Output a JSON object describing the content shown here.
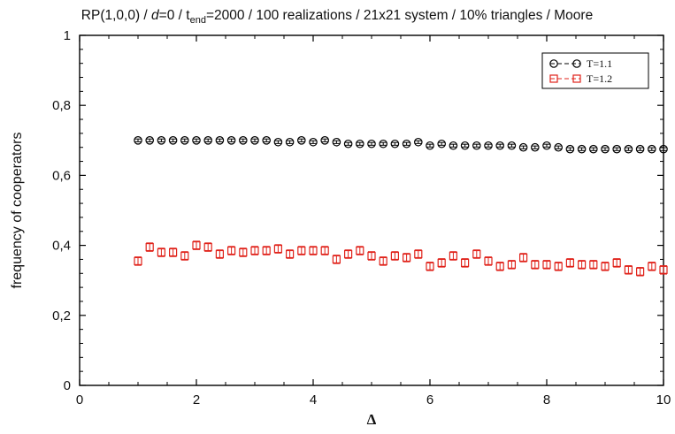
{
  "chart_data": {
    "type": "scatter",
    "title": {
      "prefix": "RP(1,0,0) / ",
      "d_symbol": "d",
      "after_d": "=0 / t",
      "sub": "end",
      "suffix": "=2000 / 100 realizations / 21x21 system / 10% triangles / Moore"
    },
    "xlabel": "Δ",
    "ylabel": "frequency of cooperators",
    "xlim": [
      0,
      10
    ],
    "ylim": [
      0,
      1
    ],
    "xticks": [
      0,
      2,
      4,
      6,
      8,
      10
    ],
    "xtick_labels": [
      "0",
      "2",
      "4",
      "6",
      "8",
      "10"
    ],
    "yticks": [
      0,
      0.2,
      0.4,
      0.6,
      0.8,
      1
    ],
    "ytick_labels": [
      "0",
      "0,2",
      "0,4",
      "0,6",
      "0,8",
      "1"
    ],
    "grid": false,
    "legend_position": "top-right",
    "x": [
      1.0,
      1.2,
      1.4,
      1.6,
      1.8,
      2.0,
      2.2,
      2.4,
      2.6,
      2.8,
      3.0,
      3.2,
      3.4,
      3.6,
      3.8,
      4.0,
      4.2,
      4.4,
      4.6,
      4.8,
      5.0,
      5.2,
      5.4,
      5.6,
      5.8,
      6.0,
      6.2,
      6.4,
      6.6,
      6.8,
      7.0,
      7.2,
      7.4,
      7.6,
      7.8,
      8.0,
      8.2,
      8.4,
      8.6,
      8.8,
      9.0,
      9.2,
      9.4,
      9.6,
      9.8,
      10.0
    ],
    "series": [
      {
        "name": "T=1.1",
        "color": "#000000",
        "marker": "circle",
        "values": [
          0.7,
          0.7,
          0.7,
          0.7,
          0.7,
          0.7,
          0.7,
          0.7,
          0.7,
          0.7,
          0.7,
          0.7,
          0.695,
          0.695,
          0.7,
          0.695,
          0.7,
          0.695,
          0.69,
          0.69,
          0.69,
          0.69,
          0.69,
          0.69,
          0.695,
          0.685,
          0.69,
          0.685,
          0.685,
          0.685,
          0.685,
          0.685,
          0.685,
          0.68,
          0.68,
          0.685,
          0.68,
          0.675,
          0.675,
          0.675,
          0.675,
          0.675,
          0.675,
          0.675,
          0.675,
          0.675
        ],
        "errors": [
          0.004,
          0.004,
          0.004,
          0.004,
          0.004,
          0.004,
          0.004,
          0.004,
          0.004,
          0.004,
          0.004,
          0.004,
          0.004,
          0.004,
          0.004,
          0.004,
          0.004,
          0.004,
          0.004,
          0.004,
          0.004,
          0.004,
          0.004,
          0.004,
          0.004,
          0.004,
          0.004,
          0.004,
          0.004,
          0.004,
          0.004,
          0.004,
          0.004,
          0.004,
          0.004,
          0.004,
          0.004,
          0.004,
          0.004,
          0.004,
          0.004,
          0.004,
          0.004,
          0.004,
          0.004,
          0.004
        ]
      },
      {
        "name": "T=1.2",
        "color": "#e0231b",
        "marker": "square",
        "values": [
          0.355,
          0.395,
          0.38,
          0.38,
          0.37,
          0.4,
          0.395,
          0.375,
          0.385,
          0.38,
          0.385,
          0.385,
          0.39,
          0.375,
          0.385,
          0.385,
          0.385,
          0.36,
          0.375,
          0.385,
          0.37,
          0.355,
          0.37,
          0.365,
          0.375,
          0.34,
          0.35,
          0.37,
          0.35,
          0.375,
          0.355,
          0.34,
          0.345,
          0.365,
          0.345,
          0.345,
          0.34,
          0.35,
          0.345,
          0.345,
          0.34,
          0.35,
          0.33,
          0.325,
          0.34,
          0.33
        ],
        "errors": [
          0.012,
          0.012,
          0.012,
          0.012,
          0.012,
          0.012,
          0.012,
          0.012,
          0.012,
          0.012,
          0.012,
          0.012,
          0.012,
          0.012,
          0.012,
          0.012,
          0.012,
          0.012,
          0.012,
          0.012,
          0.012,
          0.012,
          0.012,
          0.012,
          0.012,
          0.012,
          0.012,
          0.012,
          0.012,
          0.012,
          0.012,
          0.012,
          0.012,
          0.012,
          0.012,
          0.012,
          0.012,
          0.012,
          0.012,
          0.012,
          0.012,
          0.012,
          0.012,
          0.012,
          0.012,
          0.012
        ]
      }
    ]
  }
}
